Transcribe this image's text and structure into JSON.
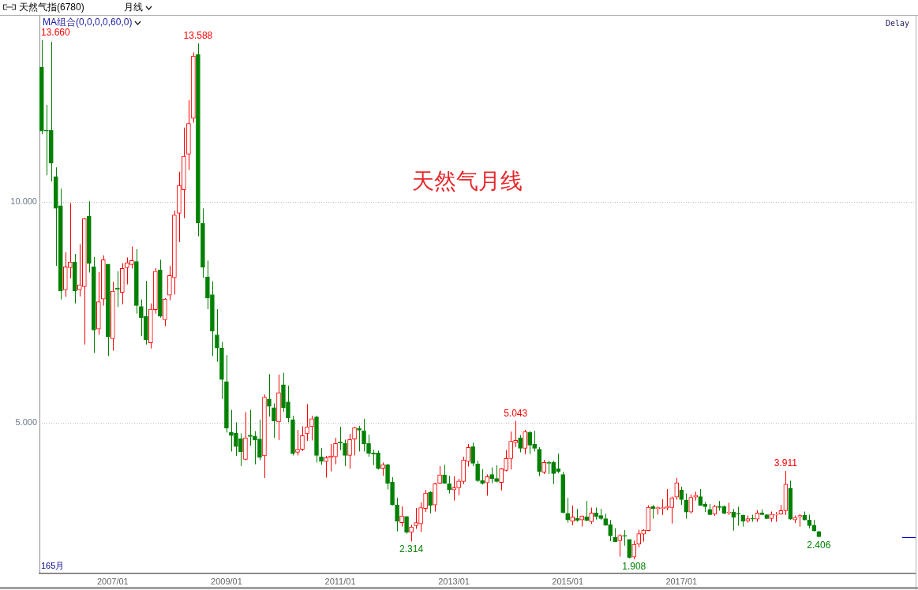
{
  "chart_data": {
    "type": "candlestick",
    "title": "天然气月线",
    "subtitle": "天然气指(6780)",
    "annotations": [
      "月线",
      "MA组合(0,0,0,0,60,0)",
      "Delay",
      "165月",
      {
        "text": "13.660",
        "x": "2005-10",
        "y": 13.66
      },
      {
        "text": "13.588",
        "x": "2008-07",
        "y": 13.588
      },
      {
        "text": "2.314",
        "x": "2012-04",
        "y": 2.314
      },
      {
        "text": "5.043",
        "x": "2014-02",
        "y": 5.043
      },
      {
        "text": "1.908",
        "x": "2016-03",
        "y": 1.908
      },
      {
        "text": "3.911",
        "x": "2018-11",
        "y": 3.911
      },
      {
        "text": "2.406",
        "x": "2019-06",
        "y": 2.406
      }
    ],
    "x": [
      "2005-10",
      "2005-11",
      "2005-12",
      "2006-01",
      "2006-02",
      "2006-03",
      "2006-04",
      "2006-05",
      "2006-06",
      "2006-07",
      "2006-08",
      "2006-09",
      "2006-10",
      "2006-11",
      "2006-12",
      "2007-01",
      "2007-02",
      "2007-03",
      "2007-04",
      "2007-05",
      "2007-06",
      "2007-07",
      "2007-08",
      "2007-09",
      "2007-10",
      "2007-11",
      "2007-12",
      "2008-01",
      "2008-02",
      "2008-03",
      "2008-04",
      "2008-05",
      "2008-06",
      "2008-07",
      "2008-08",
      "2008-09",
      "2008-10",
      "2008-11",
      "2008-12",
      "2009-01",
      "2009-02",
      "2009-03",
      "2009-04",
      "2009-05",
      "2009-06",
      "2009-07",
      "2009-08",
      "2009-09",
      "2009-10",
      "2009-11",
      "2009-12",
      "2010-01",
      "2010-02",
      "2010-03",
      "2010-04",
      "2010-05",
      "2010-06",
      "2010-07",
      "2010-08",
      "2010-09",
      "2010-10",
      "2010-11",
      "2010-12",
      "2011-01",
      "2011-02",
      "2011-03",
      "2011-04",
      "2011-05",
      "2011-06",
      "2011-07",
      "2011-08",
      "2011-09",
      "2011-10",
      "2011-11",
      "2011-12",
      "2012-01",
      "2012-02",
      "2012-03",
      "2012-04",
      "2012-05",
      "2012-06",
      "2012-07",
      "2012-08",
      "2012-09",
      "2012-10",
      "2012-11",
      "2012-12",
      "2013-01",
      "2013-02",
      "2013-03",
      "2013-04",
      "2013-05",
      "2013-06",
      "2013-07",
      "2013-08",
      "2013-09",
      "2013-10",
      "2013-11",
      "2013-12",
      "2014-01",
      "2014-02",
      "2014-03",
      "2014-04",
      "2014-05",
      "2014-06",
      "2014-07",
      "2014-08",
      "2014-09",
      "2014-10",
      "2014-11",
      "2014-12",
      "2015-01",
      "2015-02",
      "2015-03",
      "2015-04",
      "2015-05",
      "2015-06",
      "2015-07",
      "2015-08",
      "2015-09",
      "2015-10",
      "2015-11",
      "2015-12",
      "2016-01",
      "2016-02",
      "2016-03",
      "2016-04",
      "2016-05",
      "2016-06",
      "2016-07",
      "2016-08",
      "2016-09",
      "2016-10",
      "2016-11",
      "2016-12",
      "2017-01",
      "2017-02",
      "2017-03",
      "2017-04",
      "2017-05",
      "2017-06",
      "2017-07",
      "2017-08",
      "2017-09",
      "2017-10",
      "2017-11",
      "2017-12",
      "2018-01",
      "2018-02",
      "2018-03",
      "2018-04",
      "2018-05",
      "2018-06",
      "2018-07",
      "2018-08",
      "2018-09",
      "2018-10",
      "2018-11",
      "2018-12",
      "2019-01",
      "2019-02",
      "2019-03",
      "2019-04",
      "2019-05",
      "2019-06"
    ],
    "ohlc": [
      [
        13.05,
        13.66,
        11.53,
        11.6
      ],
      [
        11.62,
        12.19,
        10.6,
        11.6
      ],
      [
        11.62,
        13.62,
        10.46,
        10.88
      ],
      [
        10.57,
        10.78,
        8.55,
        9.85
      ],
      [
        9.91,
        10.3,
        7.79,
        7.98
      ],
      [
        8.01,
        8.86,
        7.85,
        8.53
      ],
      [
        8.51,
        9.97,
        8.27,
        8.64
      ],
      [
        8.64,
        8.82,
        7.7,
        7.98
      ],
      [
        8.01,
        9.04,
        7.86,
        8.12
      ],
      [
        8.08,
        9.64,
        6.77,
        9.62
      ],
      [
        9.67,
        10.01,
        8.4,
        8.6
      ],
      [
        8.53,
        8.75,
        6.58,
        7.1
      ],
      [
        7.12,
        8.41,
        6.99,
        7.74
      ],
      [
        7.8,
        8.79,
        7.65,
        8.69
      ],
      [
        8.59,
        8.59,
        6.51,
        6.94
      ],
      [
        6.9,
        8.19,
        6.63,
        7.98
      ],
      [
        8.05,
        8.43,
        7.62,
        8.02
      ],
      [
        7.95,
        8.61,
        7.68,
        8.49
      ],
      [
        8.51,
        8.74,
        8.13,
        8.62
      ],
      [
        8.58,
        8.99,
        8.49,
        8.67
      ],
      [
        8.65,
        8.93,
        7.47,
        7.65
      ],
      [
        7.63,
        7.79,
        6.96,
        7.38
      ],
      [
        7.41,
        8.21,
        6.77,
        6.88
      ],
      [
        6.81,
        7.7,
        6.68,
        7.57
      ],
      [
        7.56,
        8.5,
        7.47,
        8.43
      ],
      [
        8.46,
        8.69,
        7.38,
        7.41
      ],
      [
        7.33,
        7.82,
        7.19,
        7.8
      ],
      [
        7.89,
        8.55,
        7.77,
        8.33
      ],
      [
        8.28,
        9.8,
        7.9,
        9.7
      ],
      [
        9.74,
        10.68,
        9.09,
        10.37
      ],
      [
        10.27,
        11.68,
        9.63,
        11.03
      ],
      [
        11.08,
        12.3,
        10.72,
        11.77
      ],
      [
        11.89,
        13.38,
        11.79,
        13.3
      ],
      [
        13.34,
        13.588,
        9.22,
        9.52
      ],
      [
        9.51,
        9.85,
        8.28,
        8.52
      ],
      [
        8.3,
        8.67,
        7.57,
        7.82
      ],
      [
        7.9,
        8.2,
        6.51,
        7.07
      ],
      [
        6.99,
        7.57,
        6.38,
        6.69
      ],
      [
        6.69,
        6.83,
        5.54,
        5.98
      ],
      [
        5.93,
        6.53,
        4.78,
        4.88
      ],
      [
        4.79,
        5.29,
        4.35,
        4.71
      ],
      [
        4.76,
        5.01,
        4.25,
        4.46
      ],
      [
        4.64,
        4.76,
        4.02,
        4.34
      ],
      [
        4.17,
        5.24,
        4.15,
        4.66
      ],
      [
        4.72,
        5.29,
        4.48,
        4.69
      ],
      [
        4.7,
        4.81,
        4.06,
        4.61
      ],
      [
        4.63,
        5.07,
        4.15,
        4.22
      ],
      [
        4.25,
        5.64,
        3.75,
        5.58
      ],
      [
        5.54,
        6.1,
        5.14,
        5.37
      ],
      [
        5.34,
        5.44,
        4.66,
        5.04
      ],
      [
        5.02,
        6.09,
        4.61,
        5.68
      ],
      [
        5.86,
        6.13,
        5.25,
        5.34
      ],
      [
        5.47,
        5.84,
        5.01,
        5.11
      ],
      [
        5.07,
        5.16,
        4.26,
        4.3
      ],
      [
        4.33,
        4.84,
        4.26,
        4.4
      ],
      [
        4.4,
        4.92,
        4.36,
        4.71
      ],
      [
        4.75,
        5.42,
        4.59,
        4.91
      ],
      [
        4.91,
        5.16,
        4.6,
        5.09
      ],
      [
        5.13,
        5.16,
        4.1,
        4.26
      ],
      [
        4.23,
        4.43,
        4.05,
        4.13
      ],
      [
        4.12,
        4.25,
        3.76,
        4.21
      ],
      [
        4.21,
        4.52,
        3.9,
        4.25
      ],
      [
        4.23,
        4.66,
        4.06,
        4.53
      ],
      [
        4.57,
        4.91,
        4.38,
        4.54
      ],
      [
        4.54,
        4.62,
        4.02,
        4.26
      ],
      [
        4.26,
        4.75,
        3.96,
        4.62
      ],
      [
        4.63,
        4.91,
        4.26,
        4.89
      ],
      [
        4.87,
        4.93,
        4.35,
        4.83
      ],
      [
        4.82,
        5.09,
        4.35,
        4.52
      ],
      [
        4.53,
        4.73,
        4.23,
        4.31
      ],
      [
        4.32,
        4.39,
        4.04,
        4.29
      ],
      [
        4.32,
        4.37,
        3.94,
        3.96
      ],
      [
        3.97,
        4.1,
        3.8,
        4.05
      ],
      [
        4.05,
        4.07,
        3.49,
        3.63
      ],
      [
        3.66,
        3.77,
        3.13,
        3.14
      ],
      [
        3.14,
        3.3,
        2.54,
        2.77
      ],
      [
        2.74,
        3.11,
        2.65,
        2.89
      ],
      [
        2.88,
        2.89,
        2.49,
        2.52
      ],
      [
        2.52,
        2.69,
        2.314,
        2.64
      ],
      [
        2.67,
        3.07,
        2.6,
        2.74
      ],
      [
        2.71,
        3.2,
        2.53,
        3.08
      ],
      [
        3.06,
        3.48,
        2.98,
        3.41
      ],
      [
        3.43,
        3.45,
        2.95,
        3.13
      ],
      [
        3.14,
        3.64,
        2.99,
        3.62
      ],
      [
        3.63,
        4.02,
        3.62,
        3.82
      ],
      [
        3.82,
        4.05,
        3.62,
        3.63
      ],
      [
        3.62,
        3.8,
        3.4,
        3.49
      ],
      [
        3.48,
        3.79,
        3.24,
        3.53
      ],
      [
        3.53,
        3.73,
        3.36,
        3.68
      ],
      [
        3.67,
        4.23,
        3.61,
        4.16
      ],
      [
        4.12,
        4.52,
        4.01,
        4.44
      ],
      [
        4.46,
        4.55,
        4.02,
        4.08
      ],
      [
        4.07,
        4.14,
        3.66,
        3.69
      ],
      [
        3.69,
        3.95,
        3.6,
        3.63
      ],
      [
        3.64,
        3.83,
        3.35,
        3.78
      ],
      [
        3.83,
        3.99,
        3.63,
        3.74
      ],
      [
        3.74,
        4.04,
        3.65,
        3.67
      ],
      [
        3.65,
        3.97,
        3.47,
        3.96
      ],
      [
        3.92,
        4.38,
        3.9,
        4.19
      ],
      [
        4.19,
        4.8,
        3.94,
        4.58
      ],
      [
        4.55,
        5.043,
        4.45,
        4.6
      ],
      [
        4.66,
        4.72,
        4.33,
        4.42
      ],
      [
        4.42,
        4.84,
        4.29,
        4.8
      ],
      [
        4.78,
        4.81,
        4.29,
        4.49
      ],
      [
        4.51,
        4.82,
        4.35,
        4.42
      ],
      [
        4.4,
        4.45,
        3.79,
        3.9
      ],
      [
        3.88,
        4.16,
        3.84,
        4.1
      ],
      [
        4.1,
        4.14,
        3.84,
        4.08
      ],
      [
        4.1,
        4.14,
        3.61,
        3.85
      ],
      [
        3.96,
        4.3,
        3.86,
        3.9
      ],
      [
        3.83,
        3.89,
        2.95,
        2.97
      ],
      [
        2.95,
        3.3,
        2.74,
        2.8
      ],
      [
        2.77,
        3.13,
        2.68,
        2.87
      ],
      [
        2.84,
        3.05,
        2.76,
        2.79
      ],
      [
        2.8,
        2.9,
        2.65,
        2.89
      ],
      [
        2.87,
        3.23,
        2.77,
        2.79
      ],
      [
        2.76,
        3.08,
        2.71,
        2.96
      ],
      [
        2.96,
        3.08,
        2.81,
        2.88
      ],
      [
        2.9,
        3.05,
        2.8,
        2.83
      ],
      [
        2.83,
        2.94,
        2.67,
        2.68
      ],
      [
        2.7,
        2.8,
        2.32,
        2.44
      ],
      [
        2.41,
        2.61,
        2.3,
        2.31
      ],
      [
        2.33,
        2.48,
        1.97,
        2.45
      ],
      [
        2.45,
        2.57,
        2.22,
        2.43
      ],
      [
        2.36,
        2.36,
        1.93,
        1.95
      ],
      [
        1.96,
        2.33,
        1.908,
        2.25
      ],
      [
        2.25,
        2.58,
        2.18,
        2.49
      ],
      [
        2.48,
        2.59,
        2.31,
        2.57
      ],
      [
        2.56,
        3.13,
        2.55,
        3.09
      ],
      [
        3.1,
        3.14,
        2.83,
        3.06
      ],
      [
        3.06,
        3.11,
        2.92,
        3.08
      ],
      [
        3.06,
        3.27,
        2.91,
        3.08
      ],
      [
        3.07,
        3.5,
        3.02,
        3.11
      ],
      [
        3.08,
        3.33,
        2.72,
        3.3
      ],
      [
        3.32,
        3.75,
        3.26,
        3.64
      ],
      [
        3.48,
        3.55,
        3.14,
        3.26
      ],
      [
        3.25,
        3.4,
        2.83,
        2.98
      ],
      [
        2.98,
        3.38,
        2.95,
        3.31
      ],
      [
        3.32,
        3.44,
        3.24,
        3.36
      ],
      [
        3.33,
        3.5,
        3.13,
        3.13
      ],
      [
        3.16,
        3.21,
        2.98,
        3.1
      ],
      [
        3.04,
        3.16,
        2.91,
        2.92
      ],
      [
        2.93,
        3.14,
        2.89,
        3.11
      ],
      [
        3.11,
        3.23,
        3.01,
        3.08
      ],
      [
        3.1,
        3.13,
        2.93,
        2.95
      ],
      [
        2.96,
        3.19,
        2.91,
        2.97
      ],
      [
        2.98,
        3.05,
        2.56,
        2.86
      ],
      [
        2.95,
        3.1,
        2.67,
        2.93
      ],
      [
        2.91,
        2.92,
        2.65,
        2.77
      ],
      [
        2.78,
        2.9,
        2.74,
        2.83
      ],
      [
        2.84,
        2.92,
        2.76,
        2.82
      ],
      [
        2.82,
        3.02,
        2.76,
        2.96
      ],
      [
        2.96,
        3.04,
        2.91,
        2.92
      ],
      [
        2.92,
        2.93,
        2.82,
        2.83
      ],
      [
        2.83,
        2.99,
        2.76,
        2.93
      ],
      [
        2.91,
        2.98,
        2.76,
        2.92
      ],
      [
        2.93,
        3.14,
        2.92,
        3.01
      ],
      [
        3.01,
        3.911,
        2.91,
        3.61
      ],
      [
        3.52,
        3.69,
        2.8,
        2.82
      ],
      [
        2.8,
        2.9,
        2.73,
        2.86
      ],
      [
        2.87,
        2.93,
        2.65,
        2.9
      ],
      [
        2.91,
        2.99,
        2.79,
        2.8
      ],
      [
        2.8,
        2.92,
        2.61,
        2.67
      ],
      [
        2.68,
        2.8,
        2.54,
        2.55
      ],
      [
        2.54,
        2.55,
        2.406,
        2.42
      ]
    ],
    "colors": [
      "#008000",
      "#008000",
      "#008000",
      "#008000",
      "#008000",
      "#ff0000",
      "#ff0000",
      "#008000",
      "#ff0000",
      "#ff0000",
      "#008000",
      "#008000",
      "#ff0000",
      "#ff0000",
      "#008000",
      "#ff0000",
      "#008000",
      "#ff0000",
      "#ff0000",
      "#ff0000",
      "#008000",
      "#008000",
      "#008000",
      "#ff0000",
      "#ff0000",
      "#008000",
      "#ff0000",
      "#ff0000",
      "#ff0000",
      "#ff0000",
      "#ff0000",
      "#ff0000",
      "#ff0000",
      "#008000",
      "#008000",
      "#008000",
      "#008000",
      "#008000",
      "#008000",
      "#008000",
      "#008000",
      "#008000",
      "#008000",
      "#ff0000",
      "#008000",
      "#008000",
      "#008000",
      "#ff0000",
      "#008000",
      "#008000",
      "#ff0000",
      "#008000",
      "#008000",
      "#008000",
      "#ff0000",
      "#ff0000",
      "#ff0000",
      "#ff0000",
      "#008000",
      "#008000",
      "#ff0000",
      "#ff0000",
      "#ff0000",
      "#008000",
      "#008000",
      "#ff0000",
      "#ff0000",
      "#008000",
      "#008000",
      "#008000",
      "#008000",
      "#008000",
      "#ff0000",
      "#008000",
      "#008000",
      "#008000",
      "#ff0000",
      "#008000",
      "#ff0000",
      "#ff0000",
      "#ff0000",
      "#ff0000",
      "#008000",
      "#ff0000",
      "#ff0000",
      "#008000",
      "#008000",
      "#ff0000",
      "#ff0000",
      "#ff0000",
      "#ff0000",
      "#008000",
      "#008000",
      "#008000",
      "#ff0000",
      "#008000",
      "#008000",
      "#ff0000",
      "#ff0000",
      "#ff0000",
      "#ff0000",
      "#008000",
      "#ff0000",
      "#008000",
      "#008000",
      "#008000",
      "#ff0000",
      "#008000",
      "#008000",
      "#008000",
      "#008000",
      "#008000",
      "#ff0000",
      "#008000",
      "#ff0000",
      "#008000",
      "#ff0000",
      "#008000",
      "#008000",
      "#008000",
      "#008000",
      "#008000",
      "#ff0000",
      "#008000",
      "#008000",
      "#ff0000",
      "#ff0000",
      "#ff0000",
      "#ff0000",
      "#008000",
      "#ff0000",
      "#ff0000",
      "#ff0000",
      "#ff0000",
      "#ff0000",
      "#008000",
      "#008000",
      "#ff0000",
      "#ff0000",
      "#008000",
      "#008000",
      "#008000",
      "#ff0000",
      "#008000",
      "#008000",
      "#ff0000",
      "#008000",
      "#008000",
      "#008000",
      "#ff0000",
      "#008000",
      "#ff0000",
      "#008000",
      "#008000",
      "#ff0000",
      "#ff0000",
      "#ff0000",
      "#ff0000",
      "#008000",
      "#ff0000",
      "#ff0000",
      "#008000",
      "#008000",
      "#008000",
      "#008000"
    ],
    "xlim": [
      "2005-09-17",
      "2021-02-13"
    ],
    "xticks": [
      {
        "value": "2007-01",
        "label": "2007/01"
      },
      {
        "value": "2009-01",
        "label": "2009/01"
      },
      {
        "value": "2011-01",
        "label": "2011/01"
      },
      {
        "value": "2013-01",
        "label": "2013/01"
      },
      {
        "value": "2015-01",
        "label": "2015/01"
      },
      {
        "value": "2017-01",
        "label": "2017/01"
      }
    ],
    "ylim": [
      1.59,
      14.21
    ],
    "yticks": [
      {
        "value": 5,
        "label": "5.000"
      },
      {
        "value": 10,
        "label": "10.000"
      }
    ],
    "grid": "y"
  }
}
